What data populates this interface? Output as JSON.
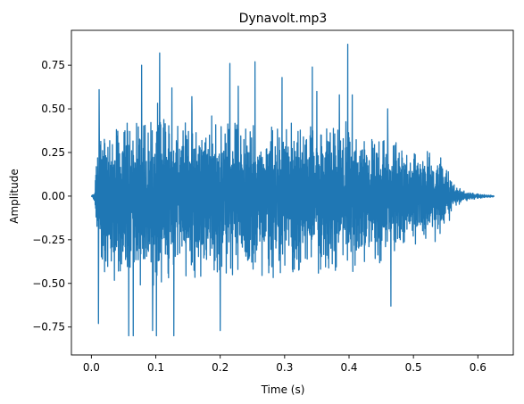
{
  "chart_data": {
    "type": "line",
    "title": "Dynavolt.mp3",
    "xlabel": "Time (s)",
    "ylabel": "Amplitude",
    "xlim": [
      -0.031,
      0.655
    ],
    "ylim": [
      -0.91,
      0.95
    ],
    "xticks": [
      0.0,
      0.1,
      0.2,
      0.3,
      0.4,
      0.5,
      0.6
    ],
    "xtick_labels": [
      "0.0",
      "0.1",
      "0.2",
      "0.3",
      "0.4",
      "0.5",
      "0.6"
    ],
    "yticks": [
      -0.75,
      -0.5,
      -0.25,
      0.0,
      0.25,
      0.5,
      0.75
    ],
    "ytick_labels": [
      "−0.75",
      "−0.50",
      "−0.25",
      "0.00",
      "0.25",
      "0.50",
      "0.75"
    ],
    "grid": false,
    "line_color": "#1f77b4",
    "duration_s": 0.625,
    "series": [
      {
        "x": [
          0.0,
          0.005,
          0.008,
          0.012,
          0.02,
          0.05,
          0.1,
          0.15,
          0.2,
          0.25,
          0.3,
          0.35,
          0.4,
          0.45,
          0.5,
          0.54,
          0.555,
          0.56,
          0.58,
          0.6,
          0.625
        ],
        "upper": [
          0.0,
          0.03,
          0.3,
          0.45,
          0.45,
          0.48,
          0.55,
          0.5,
          0.48,
          0.46,
          0.45,
          0.46,
          0.45,
          0.35,
          0.3,
          0.27,
          0.2,
          0.08,
          0.03,
          0.015,
          0.005
        ],
        "lower": [
          0.0,
          -0.03,
          -0.35,
          -0.5,
          -0.5,
          -0.55,
          -0.55,
          -0.55,
          -0.52,
          -0.5,
          -0.5,
          -0.5,
          -0.45,
          -0.4,
          -0.32,
          -0.28,
          -0.2,
          -0.08,
          -0.03,
          -0.015,
          -0.005
        ],
        "peaks": [
          [
            0.012,
            0.61
          ],
          [
            0.011,
            -0.73
          ],
          [
            0.058,
            0.59
          ],
          [
            0.058,
            -0.8
          ],
          [
            0.065,
            -0.8
          ],
          [
            0.078,
            0.75
          ],
          [
            0.095,
            -0.77
          ],
          [
            0.101,
            -0.8
          ],
          [
            0.106,
            0.82
          ],
          [
            0.125,
            0.62
          ],
          [
            0.128,
            -0.8
          ],
          [
            0.156,
            0.57
          ],
          [
            0.215,
            0.76
          ],
          [
            0.2,
            -0.77
          ],
          [
            0.228,
            0.63
          ],
          [
            0.254,
            0.77
          ],
          [
            0.296,
            0.68
          ],
          [
            0.343,
            0.74
          ],
          [
            0.35,
            0.6
          ],
          [
            0.385,
            0.58
          ],
          [
            0.398,
            0.87
          ],
          [
            0.405,
            0.58
          ],
          [
            0.46,
            0.5
          ],
          [
            0.465,
            -0.63
          ]
        ]
      }
    ]
  }
}
